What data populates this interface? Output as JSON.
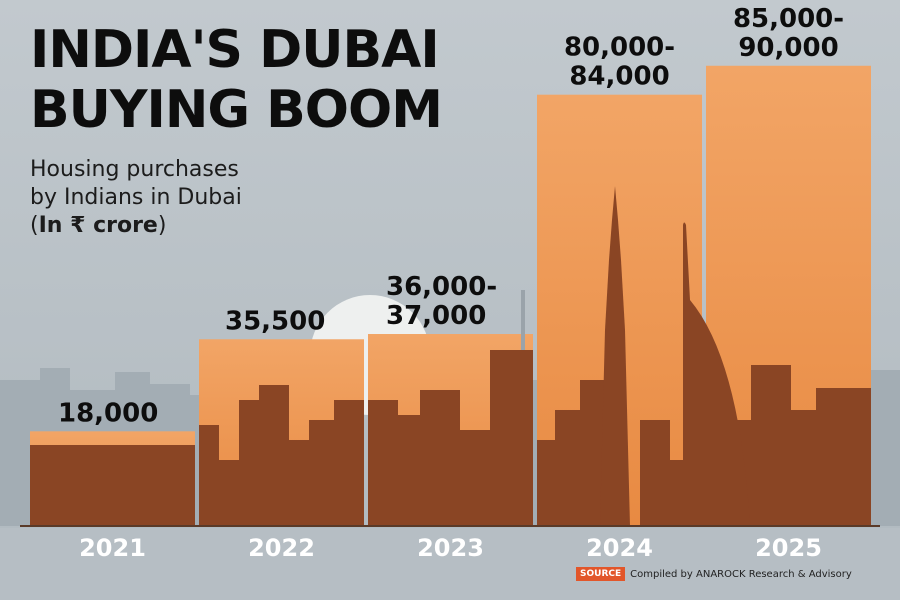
{
  "title": "INDIA'S DUBAI\nBUYING BOOM",
  "subtitle": {
    "line1": "Housing purchases",
    "line2": "by Indians in Dubai",
    "unit_open": "(",
    "unit": "In ₹ crore",
    "unit_close": ")"
  },
  "source": {
    "label": "SOURCE",
    "text": "Compiled by ANAROCK Research & Advisory"
  },
  "colors": {
    "bar_fill": "#f2a566",
    "bar_top": "#e98a45",
    "skyline": "#8a4524",
    "background": "#b9c2c8",
    "text": "#0d0d0d"
  },
  "chart_data": {
    "type": "bar",
    "categories": [
      "2021",
      "2022",
      "2023",
      "2024",
      "2025"
    ],
    "series": [
      {
        "values": [
          18000,
          35500,
          36500,
          82000,
          87500
        ],
        "labels": [
          "18,000",
          "35,500",
          "36,000-\n37,000",
          "80,000-\n84,000",
          "85,000-\n90,000"
        ]
      }
    ],
    "ylim": [
      0,
      100000
    ],
    "grid": false,
    "legend": "none",
    "xlabel": "",
    "ylabel": ""
  }
}
